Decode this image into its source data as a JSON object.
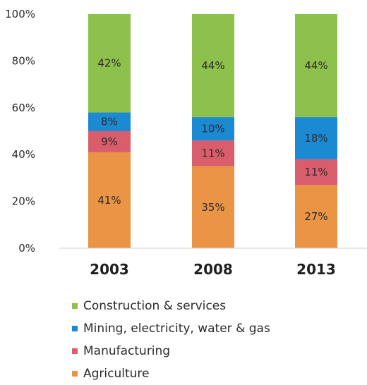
{
  "chart_data": {
    "type": "bar",
    "stacked": true,
    "orientation": "vertical",
    "categories": [
      "2003",
      "2008",
      "2013"
    ],
    "ylim": [
      0,
      100
    ],
    "yticks": [
      "0%",
      "20%",
      "40%",
      "60%",
      "80%",
      "100%"
    ],
    "series": [
      {
        "name": "Agriculture",
        "values": [
          41,
          35,
          27
        ],
        "labels": [
          "41%",
          "35%",
          "27%"
        ],
        "color": "#ea9446"
      },
      {
        "name": "Manufacturing",
        "values": [
          9,
          11,
          11
        ],
        "labels": [
          "9%",
          "11%",
          "11%"
        ],
        "color": "#d95d6a"
      },
      {
        "name": "Mining, electricity, water & gas",
        "values": [
          8,
          10,
          18
        ],
        "labels": [
          "8%",
          "10%",
          "18%"
        ],
        "color": "#1b8ad3"
      },
      {
        "name": "Construction & services",
        "values": [
          42,
          44,
          44
        ],
        "labels": [
          "42%",
          "44%",
          "44%"
        ],
        "color": "#8ec04c"
      }
    ],
    "legend_order": [
      "Construction & services",
      "Mining, electricity, water & gas",
      "Manufacturing",
      "Agriculture"
    ],
    "legend_position": "bottom",
    "grid": false
  }
}
